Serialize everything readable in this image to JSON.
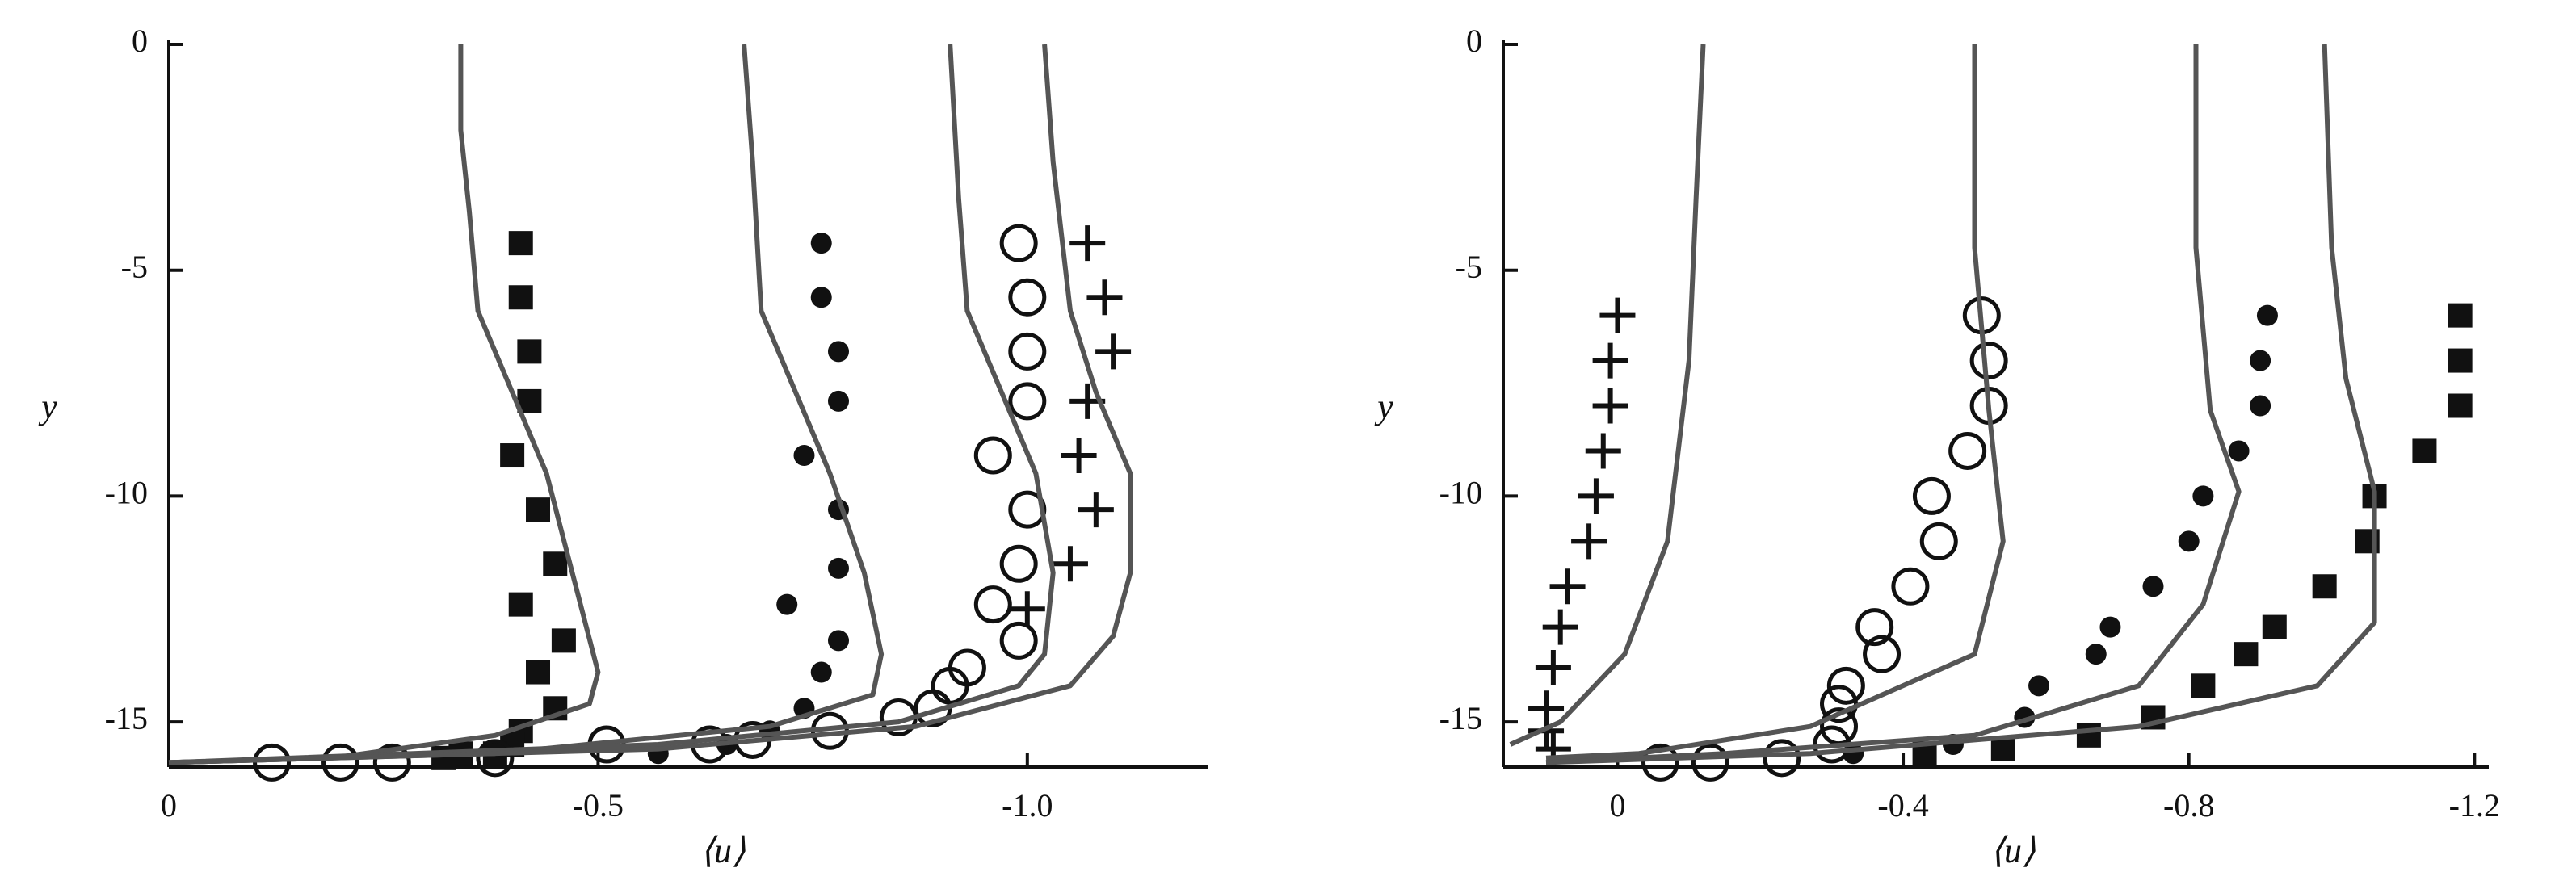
{
  "chart_data": [
    {
      "type": "scatter",
      "x_label": "⟨u⟩",
      "y_label": "y",
      "xlim": [
        0,
        -1.21
      ],
      "ylim": [
        -16,
        0
      ],
      "xticks": [
        0,
        -0.5,
        {
          "value": -1,
          "label": "-1.0"
        }
      ],
      "yticks": [
        0,
        -5,
        -10,
        -15
      ],
      "series": [
        {
          "marker": "square",
          "color": "#111",
          "x": [
            -0.41,
            -0.41,
            -0.42,
            -0.42,
            -0.4,
            -0.43,
            -0.45,
            -0.41,
            -0.46,
            -0.43,
            -0.45,
            -0.41,
            -0.4,
            -0.38,
            -0.34,
            -0.32
          ],
          "y": [
            -4.4,
            -5.6,
            -6.8,
            -7.9,
            -9.1,
            -10.3,
            -11.5,
            -12.4,
            -13.2,
            -13.9,
            -14.7,
            -15.2,
            -15.5,
            -15.7,
            -15.7,
            -15.8
          ]
        },
        {
          "marker": "dot",
          "color": "#111",
          "x": [
            -0.76,
            -0.76,
            -0.78,
            -0.78,
            -0.74,
            -0.78,
            -0.78,
            -0.72,
            -0.78,
            -0.76,
            -0.74,
            -0.7,
            -0.65,
            -0.57
          ],
          "y": [
            -4.4,
            -5.6,
            -6.8,
            -7.9,
            -9.1,
            -10.3,
            -11.6,
            -12.4,
            -13.2,
            -13.9,
            -14.7,
            -15.2,
            -15.5,
            -15.7
          ]
        },
        {
          "marker": "circle",
          "color": "#111",
          "x": [
            -0.99,
            -1.0,
            -1.0,
            -1.0,
            -0.96,
            -1.0,
            -0.99,
            -0.96,
            -0.99,
            -0.93,
            -0.91,
            -0.89,
            -0.85,
            -0.77,
            -0.68,
            -0.63,
            -0.51,
            -0.38,
            -0.26,
            -0.2,
            -0.12
          ],
          "y": [
            -4.4,
            -5.6,
            -6.8,
            -7.9,
            -9.1,
            -10.3,
            -11.5,
            -12.4,
            -13.2,
            -13.8,
            -14.2,
            -14.7,
            -14.9,
            -15.2,
            -15.4,
            -15.5,
            -15.5,
            -15.8,
            -15.9,
            -15.9,
            -15.9
          ]
        },
        {
          "marker": "plus",
          "color": "#111",
          "x": [
            -1.07,
            -1.09,
            -1.1,
            -1.07,
            -1.06,
            -1.08,
            -1.05,
            -1.0
          ],
          "y": [
            -4.4,
            -5.6,
            -6.8,
            -7.9,
            -9.1,
            -10.3,
            -11.5,
            -12.5
          ]
        },
        {
          "marker": "line",
          "color": "#555",
          "x": [
            -0.34,
            -0.34,
            -0.35,
            -0.36,
            -0.4,
            -0.44,
            -0.47,
            -0.5,
            -0.49,
            -0.38,
            -0.19,
            0
          ],
          "y": [
            0,
            -1.9,
            -3.7,
            -5.9,
            -7.7,
            -9.5,
            -11.7,
            -13.9,
            -14.6,
            -15.3,
            -15.8,
            -15.9
          ]
        },
        {
          "marker": "line",
          "color": "#555",
          "x": [
            -0.67,
            -0.68,
            -0.69,
            -0.73,
            -0.77,
            -0.81,
            -0.83,
            -0.82,
            -0.7,
            -0.38,
            0
          ],
          "y": [
            0,
            -2.6,
            -5.9,
            -7.7,
            -9.5,
            -11.7,
            -13.5,
            -14.4,
            -15.1,
            -15.7,
            -15.9
          ]
        },
        {
          "marker": "line",
          "color": "#555",
          "x": [
            -0.91,
            -0.92,
            -0.93,
            -0.97,
            -1.01,
            -1.03,
            -1.02,
            -0.99,
            -0.85,
            -0.57,
            0
          ],
          "y": [
            0,
            -3.4,
            -5.9,
            -7.7,
            -9.5,
            -11.7,
            -13.5,
            -14.2,
            -15.0,
            -15.5,
            -15.9
          ]
        },
        {
          "marker": "line",
          "color": "#555",
          "x": [
            -1.02,
            -1.03,
            -1.05,
            -1.08,
            -1.12,
            -1.12,
            -1.1,
            -1.05,
            -0.87,
            -0.57,
            0
          ],
          "y": [
            0,
            -2.6,
            -5.9,
            -7.7,
            -9.5,
            -11.7,
            -13.1,
            -14.2,
            -15.1,
            -15.6,
            -15.9
          ]
        }
      ]
    },
    {
      "type": "scatter",
      "x_label": "⟨u⟩",
      "y_label": "y",
      "xlim": [
        0.16,
        -1.22
      ],
      "ylim": [
        -16,
        0
      ],
      "xticks": [
        0,
        -0.4,
        -0.8,
        -1.2
      ],
      "yticks": [
        0,
        -5,
        -10,
        -15
      ],
      "series": [
        {
          "marker": "plus",
          "color": "#111",
          "x": [
            0.0,
            0.01,
            0.01,
            0.02,
            0.03,
            0.04,
            0.07,
            0.08,
            0.09,
            0.1,
            0.1,
            0.09
          ],
          "y": [
            -6,
            -7,
            -8,
            -9,
            -10,
            -11,
            -12,
            -12.9,
            -13.8,
            -14.7,
            -15.2,
            -15.6
          ]
        },
        {
          "marker": "circle",
          "color": "#111",
          "x": [
            -0.51,
            -0.52,
            -0.52,
            -0.49,
            -0.44,
            -0.45,
            -0.41,
            -0.36,
            -0.37,
            -0.32,
            -0.31,
            -0.31,
            -0.3,
            -0.23,
            -0.13,
            -0.06
          ],
          "y": [
            -6,
            -7,
            -8,
            -9,
            -10,
            -11,
            -12,
            -12.9,
            -13.5,
            -14.2,
            -14.6,
            -15.1,
            -15.5,
            -15.8,
            -15.9,
            -15.9
          ]
        },
        {
          "marker": "dot",
          "color": "#111",
          "x": [
            -0.91,
            -0.9,
            -0.9,
            -0.87,
            -0.82,
            -0.8,
            -0.75,
            -0.69,
            -0.67,
            -0.59,
            -0.57,
            -0.47,
            -0.33
          ],
          "y": [
            -6,
            -7,
            -8,
            -9,
            -10,
            -11,
            -12,
            -12.9,
            -13.5,
            -14.2,
            -14.9,
            -15.5,
            -15.7
          ]
        },
        {
          "marker": "square",
          "color": "#111",
          "x": [
            -1.18,
            -1.18,
            -1.18,
            -1.13,
            -1.06,
            -1.05,
            -0.99,
            -0.92,
            -0.88,
            -0.82,
            -0.75,
            -0.66,
            -0.54,
            -0.43
          ],
          "y": [
            -6,
            -7,
            -8,
            -9,
            -10,
            -11,
            -12,
            -12.9,
            -13.5,
            -14.2,
            -14.9,
            -15.3,
            -15.6,
            -15.7
          ]
        },
        {
          "marker": "line",
          "color": "#555",
          "x": [
            -0.12,
            -0.11,
            -0.1,
            -0.07,
            -0.01,
            0.08,
            0.15
          ],
          "y": [
            0,
            -3.4,
            -7,
            -11,
            -13.5,
            -15,
            -15.5
          ]
        },
        {
          "marker": "line",
          "color": "#555",
          "x": [
            -0.5,
            -0.5,
            -0.52,
            -0.54,
            -0.5,
            -0.27,
            -0.03,
            0.1
          ],
          "y": [
            0,
            -4.5,
            -8.1,
            -11,
            -13.5,
            -15.1,
            -15.7,
            -15.8
          ]
        },
        {
          "marker": "line",
          "color": "#555",
          "x": [
            -0.81,
            -0.81,
            -0.83,
            -0.87,
            -0.82,
            -0.73,
            -0.5,
            -0.15,
            0.1
          ],
          "y": [
            0,
            -4.5,
            -8.1,
            -9.9,
            -12.4,
            -14.2,
            -15.3,
            -15.7,
            -15.9
          ]
        },
        {
          "marker": "line",
          "color": "#555",
          "x": [
            -0.99,
            -1.0,
            -1.02,
            -1.06,
            -1.06,
            -0.98,
            -0.73,
            -0.27,
            0.1
          ],
          "y": [
            0,
            -4.5,
            -7.4,
            -9.9,
            -12.8,
            -14.2,
            -15.1,
            -15.7,
            -15.9
          ]
        }
      ]
    }
  ]
}
